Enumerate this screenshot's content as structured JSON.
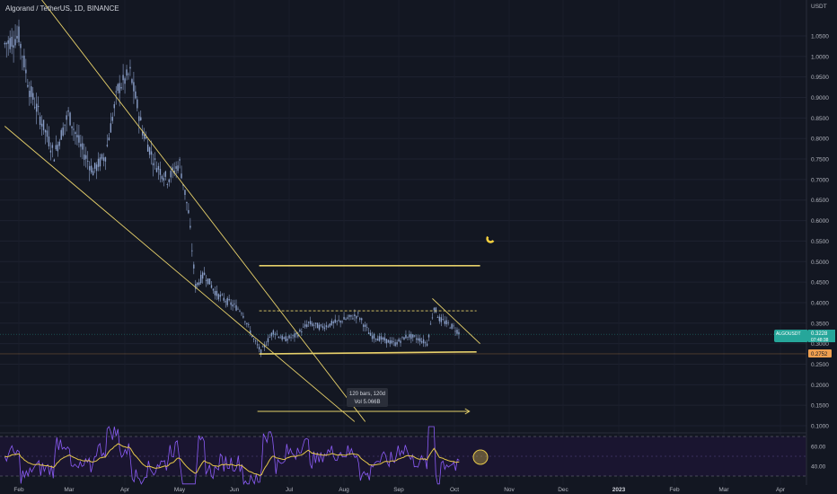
{
  "header": {
    "title": "Algorand / TetherUS, 1D, BINANCE"
  },
  "price_axis": {
    "unit": "USDT",
    "ticks": [
      "1.0500",
      "1.0000",
      "0.9500",
      "0.9000",
      "0.8500",
      "0.8000",
      "0.7500",
      "0.7000",
      "0.6500",
      "0.6000",
      "0.5500",
      "0.5000",
      "0.4500",
      "0.4000",
      "0.3500",
      "0.3000",
      "0.2500",
      "0.2000",
      "0.1500",
      "0.1000"
    ],
    "last_price_label": "ALGOUSDT",
    "last_price": "0.3228",
    "last_price_sub": "07:48:38",
    "right_tag": "0.2752"
  },
  "time_axis": {
    "ticks": [
      "Feb",
      "Mar",
      "Apr",
      "May",
      "Jun",
      "Jul",
      "Aug",
      "Sep",
      "Oct",
      "Nov",
      "Dec",
      "2023",
      "Feb",
      "Mar",
      "Apr"
    ]
  },
  "rsi_axis": {
    "ticks": [
      "60.00",
      "40.00"
    ]
  },
  "measure_tooltip": {
    "line1": "120 bars, 120d",
    "line2": "Vol 5.066B"
  },
  "colors": {
    "background": "#131722",
    "candles": "#8a9fc9",
    "trendline": "#e6d06a",
    "rsi": "#8b5cf6",
    "rsi_ma": "#e6c84a",
    "price_tag": "#26a69a",
    "right_tag": "#f0a050",
    "magnet_icon": "#f4d03f"
  },
  "chart_data": {
    "type": "candlestick",
    "x_unit": "date",
    "y_unit": "USDT",
    "ylim": [
      0.08,
      1.08
    ],
    "close_series": [
      [
        "2022-01-24",
        1.03
      ],
      [
        "2022-02-01",
        1.05
      ],
      [
        "2022-02-07",
        0.92
      ],
      [
        "2022-02-14",
        0.84
      ],
      [
        "2022-02-21",
        0.76
      ],
      [
        "2022-03-01",
        0.86
      ],
      [
        "2022-03-08",
        0.78
      ],
      [
        "2022-03-15",
        0.72
      ],
      [
        "2022-03-22",
        0.76
      ],
      [
        "2022-03-29",
        0.92
      ],
      [
        "2022-04-05",
        0.96
      ],
      [
        "2022-04-12",
        0.82
      ],
      [
        "2022-04-19",
        0.74
      ],
      [
        "2022-04-26",
        0.7
      ],
      [
        "2022-05-03",
        0.74
      ],
      [
        "2022-05-08",
        0.62
      ],
      [
        "2022-05-12",
        0.44
      ],
      [
        "2022-05-17",
        0.47
      ],
      [
        "2022-05-24",
        0.42
      ],
      [
        "2022-05-31",
        0.4
      ],
      [
        "2022-06-07",
        0.38
      ],
      [
        "2022-06-14",
        0.31
      ],
      [
        "2022-06-18",
        0.28
      ],
      [
        "2022-06-25",
        0.33
      ],
      [
        "2022-07-01",
        0.31
      ],
      [
        "2022-07-08",
        0.32
      ],
      [
        "2022-07-15",
        0.35
      ],
      [
        "2022-07-22",
        0.34
      ],
      [
        "2022-07-29",
        0.35
      ],
      [
        "2022-08-05",
        0.36
      ],
      [
        "2022-08-12",
        0.37
      ],
      [
        "2022-08-19",
        0.32
      ],
      [
        "2022-08-26",
        0.31
      ],
      [
        "2022-09-02",
        0.3
      ],
      [
        "2022-09-09",
        0.32
      ],
      [
        "2022-09-16",
        0.31
      ],
      [
        "2022-09-20",
        0.3
      ],
      [
        "2022-09-24",
        0.39
      ],
      [
        "2022-09-27",
        0.36
      ],
      [
        "2022-10-01",
        0.35
      ],
      [
        "2022-10-05",
        0.34
      ],
      [
        "2022-10-09",
        0.3228
      ]
    ],
    "drawings": {
      "falling_wedge_upper": [
        [
          "2022-01-25",
          1.25
        ],
        [
          "2022-08-16",
          0.11
        ]
      ],
      "falling_wedge_lower": [
        [
          "2022-01-24",
          0.83
        ],
        [
          "2022-08-10",
          0.11
        ]
      ],
      "range_top": [
        [
          "2022-06-17",
          0.49
        ],
        [
          "2022-10-20",
          0.49
        ]
      ],
      "range_resistance_dashed": [
        [
          "2022-06-17",
          0.38
        ],
        [
          "2022-10-18",
          0.38
        ]
      ],
      "range_support": [
        [
          "2022-06-17",
          0.275
        ],
        [
          "2022-10-18",
          0.28
        ]
      ],
      "local_downtrend": [
        [
          "2022-09-23",
          0.41
        ],
        [
          "2022-10-20",
          0.3
        ]
      ],
      "measure_arrow": [
        [
          "2022-06-16",
          0.135
        ],
        [
          "2022-10-14",
          0.135
        ]
      ]
    },
    "rsi": {
      "levels": [
        70,
        30
      ],
      "tick_labels": [
        60,
        40
      ]
    }
  }
}
